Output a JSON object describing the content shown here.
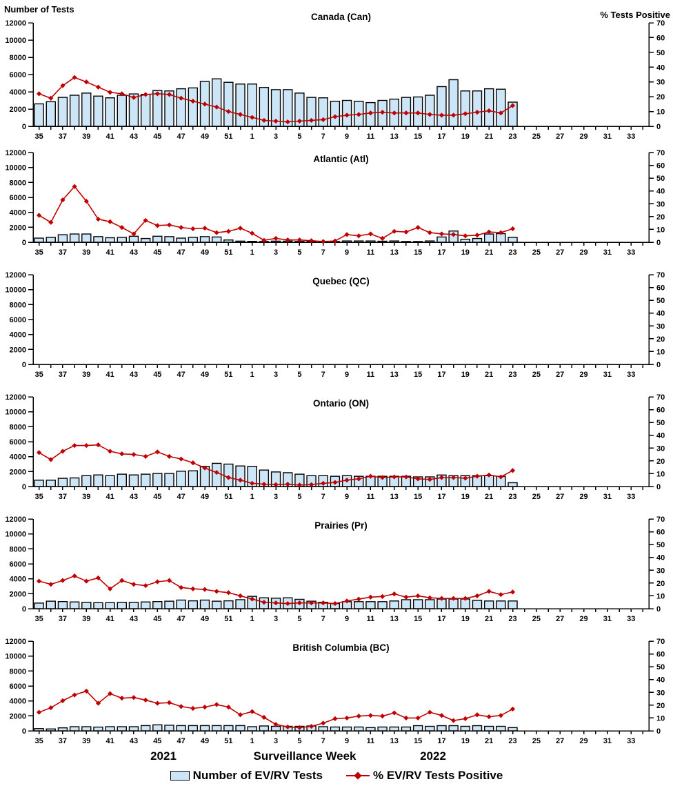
{
  "header": {
    "left_axis_title": "Number of Tests",
    "right_axis_title": "% Tests Positive"
  },
  "footer": {
    "year_left": "2021",
    "xaxis_title": "Surveillance Week",
    "year_right": "2022"
  },
  "legend": {
    "bars_label": "Number of EV/RV Tests",
    "line_label": "% EV/RV Tests Positive"
  },
  "colors": {
    "bar_fill": "#CDE6F7",
    "bar_stroke": "#000000",
    "line_color": "#C00000",
    "axis_color": "#000000"
  },
  "chart_data": {
    "type": "bar-line-combo",
    "x_axis": {
      "weeks": [
        35,
        36,
        37,
        38,
        39,
        40,
        41,
        42,
        43,
        44,
        45,
        46,
        47,
        48,
        49,
        50,
        51,
        52,
        1,
        2,
        3,
        4,
        5,
        6,
        7,
        8,
        9,
        10,
        11,
        12,
        13,
        14,
        15,
        16,
        17,
        18,
        19,
        20,
        21,
        22,
        23,
        24,
        25,
        26,
        27,
        28,
        29,
        30,
        31,
        32,
        33,
        34
      ],
      "labeled_weeks": [
        35,
        37,
        39,
        41,
        43,
        45,
        47,
        49,
        51,
        1,
        3,
        5,
        7,
        9,
        11,
        13,
        15,
        17,
        19,
        21,
        23,
        25,
        27,
        29,
        31,
        33
      ]
    },
    "y_left": {
      "ticks": [
        0,
        2000,
        4000,
        6000,
        8000,
        10000,
        12000
      ],
      "range": [
        0,
        12000
      ]
    },
    "y_right": {
      "ticks": [
        0,
        10,
        20,
        30,
        40,
        50,
        60,
        70
      ],
      "range": [
        0,
        70
      ]
    },
    "grid": false,
    "legend_position": "bottom",
    "panels": [
      {
        "title": "Canada (Can)",
        "tests": [
          2600,
          2850,
          3350,
          3600,
          3850,
          3500,
          3300,
          3600,
          3750,
          3700,
          4150,
          4100,
          4350,
          4450,
          5200,
          5500,
          5100,
          4900,
          4900,
          4500,
          4250,
          4250,
          3850,
          3350,
          3300,
          2900,
          3000,
          2900,
          2750,
          3000,
          3150,
          3350,
          3400,
          3600,
          4600,
          5400,
          4100,
          4100,
          4350,
          4300,
          2800
        ],
        "pct_positive": [
          22,
          19,
          27.5,
          33,
          30,
          26.5,
          23,
          22,
          19.5,
          21.5,
          22,
          21.5,
          19,
          17,
          15,
          13,
          10,
          8,
          6,
          4,
          3.5,
          3,
          3.5,
          4,
          4.5,
          6.5,
          7.5,
          8,
          9,
          9.5,
          9,
          9,
          9,
          8,
          7.5,
          7.5,
          8.5,
          9.5,
          10.5,
          9,
          14
        ]
      },
      {
        "title": "Atlantic (Atl)",
        "tests": [
          550,
          650,
          1000,
          1100,
          1100,
          750,
          600,
          650,
          800,
          500,
          800,
          750,
          550,
          650,
          750,
          700,
          300,
          150,
          120,
          100,
          150,
          150,
          100,
          100,
          80,
          100,
          170,
          170,
          170,
          140,
          170,
          100,
          100,
          170,
          700,
          1500,
          400,
          500,
          1100,
          1150,
          650
        ],
        "pct_positive": [
          21,
          15.5,
          33,
          43.5,
          32,
          18,
          16,
          11.5,
          6.5,
          17,
          13,
          13.5,
          11.5,
          10.5,
          11,
          7.5,
          8.5,
          11,
          7,
          1.5,
          3,
          1.8,
          1.8,
          1.2,
          0.6,
          1,
          6,
          5,
          6.5,
          3,
          8.5,
          8,
          11.5,
          7.5,
          6.5,
          6,
          5,
          5.5,
          8,
          7.5,
          10.5
        ]
      },
      {
        "title": "Quebec (QC)",
        "tests": [],
        "pct_positive": []
      },
      {
        "title": "Ontario (ON)",
        "tests": [
          850,
          850,
          1100,
          1150,
          1450,
          1550,
          1450,
          1650,
          1550,
          1650,
          1750,
          1750,
          2050,
          2100,
          2700,
          3100,
          3000,
          2750,
          2700,
          2200,
          1950,
          1850,
          1650,
          1450,
          1450,
          1370,
          1450,
          1370,
          1370,
          1370,
          1370,
          1370,
          1290,
          1290,
          1540,
          1450,
          1450,
          1450,
          1450,
          1370,
          510
        ],
        "pct_positive": [
          26.5,
          21,
          27.5,
          32,
          32,
          32.5,
          27.5,
          25.5,
          25,
          23.5,
          27,
          23.5,
          21.5,
          18.5,
          14.5,
          11,
          7,
          5,
          2.5,
          1.8,
          1.5,
          1.8,
          1.2,
          1.5,
          2.5,
          3.2,
          5,
          6,
          8,
          7,
          7.5,
          7.5,
          6,
          5.5,
          7,
          7,
          6.5,
          8,
          9,
          7.5,
          12.5
        ]
      },
      {
        "title": "Prairies (Pr)",
        "tests": [
          750,
          1000,
          950,
          900,
          850,
          800,
          800,
          850,
          850,
          900,
          950,
          1000,
          1150,
          1050,
          1150,
          1000,
          1050,
          1200,
          1650,
          1450,
          1400,
          1450,
          1250,
          1000,
          860,
          690,
          940,
          940,
          940,
          940,
          1030,
          1200,
          1200,
          1200,
          1290,
          1290,
          1290,
          1110,
          1030,
          1030,
          1030
        ],
        "pct_positive": [
          21.5,
          19,
          22,
          25.5,
          21.5,
          24,
          15.5,
          22,
          19,
          18,
          21,
          22,
          16.5,
          15.5,
          15,
          13.5,
          12.5,
          10,
          7.5,
          5,
          4.5,
          4,
          4.5,
          4.5,
          4.5,
          4,
          6,
          7.5,
          9,
          9.5,
          11.5,
          9,
          10,
          8.5,
          8,
          8,
          8,
          10,
          13.5,
          11,
          13
        ]
      },
      {
        "title": "British Columbia (BC)",
        "tests": [
          300,
          250,
          400,
          550,
          550,
          500,
          550,
          550,
          550,
          700,
          800,
          750,
          700,
          700,
          700,
          700,
          700,
          700,
          550,
          650,
          600,
          600,
          600,
          650,
          550,
          510,
          510,
          510,
          430,
          510,
          510,
          510,
          690,
          600,
          690,
          690,
          600,
          690,
          600,
          600,
          430
        ],
        "pct_positive": [
          14.5,
          18,
          23.5,
          28,
          31,
          21.5,
          29,
          25.5,
          26,
          24,
          21.5,
          22,
          19,
          17.5,
          18.5,
          20.5,
          18.5,
          12.5,
          15,
          10.5,
          5,
          3,
          2.5,
          3.5,
          6,
          9.5,
          10,
          11.5,
          12,
          11.5,
          14,
          10,
          10,
          14.5,
          12,
          8,
          9.5,
          12.5,
          11,
          12,
          17
        ]
      }
    ]
  }
}
